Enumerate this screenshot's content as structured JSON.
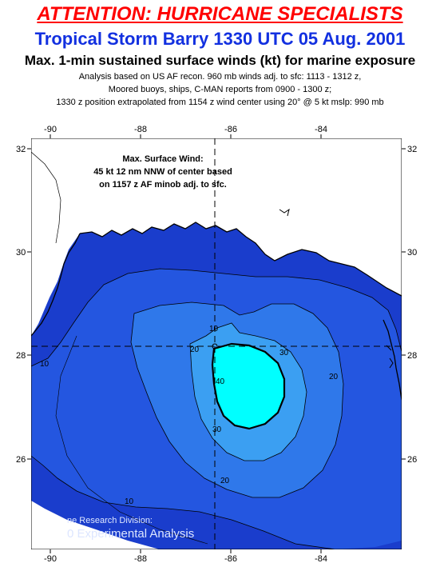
{
  "header": {
    "attention": "ATTENTION: HURRICANE SPECIALISTS",
    "title": "Tropical Storm Barry 1330 UTC 05 Aug. 2001",
    "subtitle": "Max. 1-min sustained surface winds (kt) for marine exposure",
    "note_line1": "Analysis based on US AF recon. 960 mb winds adj. to sfc: 1113 - 1312 z,",
    "note_line2": "Moored buoys, ships, C-MAN reports from  0900 - 1300 z;",
    "note_line3": "1330 z position extrapolated from 1154 z wind center using  20° @ 5 kt  mslp: 990 mb"
  },
  "map": {
    "lon_ticks": [
      "-90",
      "-88",
      "-86",
      "-84"
    ],
    "lat_ticks": [
      "32",
      "30",
      "28",
      "26"
    ],
    "colors": {
      "land": "#ffffff",
      "wind_lt10": "#1a3dcc",
      "wind_10_20": "#2456e0",
      "wind_20_30": "#2f78ea",
      "wind_30_40": "#3b9ff2",
      "wind_ge40": "#00ffff",
      "coast": "#000000"
    },
    "contour_labels": {
      "c10_left": "10",
      "c10_bottom": "10",
      "c20_a": "20",
      "c20_b": "20",
      "c20_c": "20",
      "c30_a": "30",
      "c30_b": "30",
      "c40": "40",
      "c10_top": "10"
    },
    "annotation": {
      "line1": "Max. Surface Wind:",
      "line2": "45 kt 12 nm NNW of center based",
      "line3": "on 1157 z AF minob adj. to sfc."
    },
    "watermark": {
      "line1": "ne Research Division:",
      "line2": "0  Experimental Analysis"
    }
  }
}
